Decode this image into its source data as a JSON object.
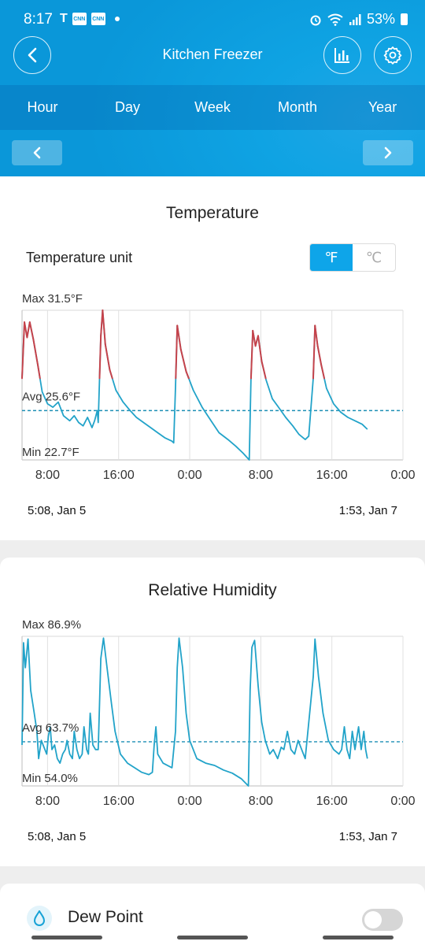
{
  "status_bar": {
    "time": "8:17",
    "battery": "53%",
    "cnn_label": "CNN"
  },
  "header": {
    "title": "Kitchen Freezer"
  },
  "tabs": [
    "Hour",
    "Day",
    "Week",
    "Month",
    "Year"
  ],
  "temperature": {
    "title": "Temperature",
    "unit_label": "Temperature unit",
    "unit_f": "℉",
    "unit_c": "℃",
    "start_label": "5:08,  Jan 5",
    "end_label": "1:53,  Jan 7",
    "chart_data": {
      "type": "line",
      "max_label": "Max 31.5°F",
      "avg_label": "Avg 25.6°F",
      "min_label": "Min 22.7°F",
      "ylim": [
        22.7,
        31.5
      ],
      "avg": 25.6,
      "threshold": 27.5,
      "x_ticks": [
        "8:00",
        "16:00",
        "0:00",
        "8:00",
        "16:00",
        "0:00"
      ],
      "x_range_hours": [
        5.13,
        48
      ],
      "series": [
        {
          "values": [
            [
              5.13,
              27.5
            ],
            [
              5.4,
              30.8
            ],
            [
              5.7,
              29.9
            ],
            [
              6.0,
              30.8
            ],
            [
              6.4,
              29.8
            ],
            [
              6.9,
              28.3
            ],
            [
              7.4,
              26.7
            ],
            [
              8,
              26.0
            ],
            [
              8.6,
              25.8
            ],
            [
              9.2,
              26.1
            ],
            [
              9.8,
              25.3
            ],
            [
              10.5,
              25.0
            ],
            [
              11.0,
              25.3
            ],
            [
              11.5,
              24.9
            ],
            [
              12.0,
              24.7
            ],
            [
              12.5,
              25.2
            ],
            [
              13.0,
              24.6
            ],
            [
              13.3,
              25.0
            ],
            [
              13.6,
              25.6
            ],
            [
              13.7,
              24.9
            ],
            [
              14.0,
              30.0
            ],
            [
              14.2,
              31.5
            ],
            [
              14.5,
              29.5
            ],
            [
              15,
              28.0
            ],
            [
              15.7,
              26.8
            ],
            [
              16.5,
              26.1
            ],
            [
              17.3,
              25.6
            ],
            [
              18,
              25.2
            ],
            [
              18.8,
              24.9
            ],
            [
              19.6,
              24.6
            ],
            [
              20.4,
              24.3
            ],
            [
              21.2,
              24.0
            ],
            [
              22.0,
              23.8
            ],
            [
              22.2,
              23.7
            ],
            [
              22.4,
              27.0
            ],
            [
              22.6,
              30.6
            ],
            [
              23.0,
              29.2
            ],
            [
              23.6,
              27.9
            ],
            [
              24.4,
              26.8
            ],
            [
              25.4,
              25.8
            ],
            [
              26.4,
              25.0
            ],
            [
              27.3,
              24.3
            ],
            [
              28.3,
              23.9
            ],
            [
              29.2,
              23.5
            ],
            [
              30.0,
              23.1
            ],
            [
              30.7,
              22.7
            ],
            [
              30.9,
              27.5
            ],
            [
              31.1,
              30.3
            ],
            [
              31.4,
              29.4
            ],
            [
              31.7,
              30.0
            ],
            [
              32.1,
              28.5
            ],
            [
              32.6,
              27.4
            ],
            [
              33.3,
              26.3
            ],
            [
              34.0,
              25.8
            ],
            [
              34.8,
              25.2
            ],
            [
              35.6,
              24.7
            ],
            [
              36.3,
              24.2
            ],
            [
              37.0,
              23.9
            ],
            [
              37.4,
              24.1
            ],
            [
              37.9,
              27.5
            ],
            [
              38.1,
              30.6
            ],
            [
              38.4,
              29.4
            ],
            [
              38.8,
              28.3
            ],
            [
              39.4,
              26.9
            ],
            [
              40.2,
              26.0
            ],
            [
              41,
              25.5
            ],
            [
              41.8,
              25.2
            ],
            [
              42.6,
              25.0
            ],
            [
              43.4,
              24.8
            ],
            [
              44.0,
              24.5
            ]
          ]
        }
      ]
    }
  },
  "humidity": {
    "title": "Relative Humidity",
    "start_label": "5:08,  Jan 5",
    "end_label": "1:53,  Jan 7",
    "chart_data": {
      "type": "line",
      "max_label": "Max 86.9%",
      "avg_label": "Avg 63.7%",
      "min_label": "Min 54.0%",
      "ylim": [
        54.0,
        86.9
      ],
      "avg": 63.7,
      "x_ticks": [
        "8:00",
        "16:00",
        "0:00",
        "8:00",
        "16:00",
        "0:00"
      ],
      "x_range_hours": [
        5.13,
        48
      ],
      "series": [
        {
          "values": [
            [
              5.13,
              63
            ],
            [
              5.3,
              85.5
            ],
            [
              5.5,
              80
            ],
            [
              5.8,
              86.3
            ],
            [
              6.1,
              75
            ],
            [
              6.5,
              70
            ],
            [
              6.8,
              66
            ],
            [
              7.0,
              60
            ],
            [
              7.3,
              64
            ],
            [
              7.6,
              62.5
            ],
            [
              7.9,
              61
            ],
            [
              8.1,
              65
            ],
            [
              8.3,
              67
            ],
            [
              8.5,
              62
            ],
            [
              8.8,
              63
            ],
            [
              9.1,
              60
            ],
            [
              9.4,
              59
            ],
            [
              9.7,
              61
            ],
            [
              10.0,
              62
            ],
            [
              10.2,
              64
            ],
            [
              10.5,
              61
            ],
            [
              10.8,
              60
            ],
            [
              11.0,
              66
            ],
            [
              11.3,
              62
            ],
            [
              11.6,
              60
            ],
            [
              11.9,
              61
            ],
            [
              12.1,
              67
            ],
            [
              12.4,
              62
            ],
            [
              12.6,
              61
            ],
            [
              12.8,
              70
            ],
            [
              13.1,
              63
            ],
            [
              13.4,
              62
            ],
            [
              13.7,
              62
            ],
            [
              14.0,
              82
            ],
            [
              14.3,
              86.5
            ],
            [
              14.7,
              80
            ],
            [
              15.2,
              72
            ],
            [
              15.6,
              66
            ],
            [
              16.2,
              61
            ],
            [
              17.0,
              59
            ],
            [
              17.8,
              58
            ],
            [
              18.6,
              57
            ],
            [
              19.4,
              56.5
            ],
            [
              19.8,
              57.0
            ],
            [
              20.0,
              63
            ],
            [
              20.2,
              67
            ],
            [
              20.4,
              61
            ],
            [
              21.0,
              59
            ],
            [
              22.0,
              58
            ],
            [
              22.4,
              66
            ],
            [
              22.6,
              80
            ],
            [
              22.8,
              86.5
            ],
            [
              23.2,
              80
            ],
            [
              23.6,
              70
            ],
            [
              24.0,
              64
            ],
            [
              24.8,
              60
            ],
            [
              25.8,
              59
            ],
            [
              26.8,
              58.5
            ],
            [
              27.8,
              57.5
            ],
            [
              28.8,
              56.8
            ],
            [
              29.8,
              55.6
            ],
            [
              30.6,
              54.0
            ],
            [
              30.8,
              75
            ],
            [
              31.0,
              84.5
            ],
            [
              31.3,
              86.0
            ],
            [
              31.7,
              76
            ],
            [
              32.1,
              68
            ],
            [
              32.5,
              64
            ],
            [
              33.0,
              61
            ],
            [
              33.4,
              62
            ],
            [
              33.9,
              60
            ],
            [
              34.3,
              62.5
            ],
            [
              34.6,
              62
            ],
            [
              35.0,
              66
            ],
            [
              35.4,
              62
            ],
            [
              35.8,
              61
            ],
            [
              36.2,
              64
            ],
            [
              36.6,
              62
            ],
            [
              37.0,
              60
            ],
            [
              37.9,
              78
            ],
            [
              38.1,
              86.3
            ],
            [
              38.5,
              78
            ],
            [
              39.0,
              70
            ],
            [
              39.6,
              64
            ],
            [
              40.2,
              62
            ],
            [
              40.8,
              61
            ],
            [
              41.1,
              62
            ],
            [
              41.4,
              67
            ],
            [
              41.7,
              62
            ],
            [
              42.0,
              60
            ],
            [
              42.3,
              66
            ],
            [
              42.6,
              62
            ],
            [
              43.0,
              67
            ],
            [
              43.3,
              62
            ],
            [
              43.6,
              66
            ],
            [
              43.8,
              62
            ],
            [
              44.0,
              60
            ]
          ]
        }
      ]
    }
  },
  "dew_point": {
    "label": "Dew Point"
  },
  "colors": {
    "primary": "#0ea5e9",
    "line": "#22a3c9",
    "high": "#c6434b",
    "avg_line": "#1d8fb5"
  },
  "icons": {
    "back": "chevron-left-icon",
    "stats": "bar-chart-icon",
    "settings": "gear-icon",
    "prev": "chevron-left-icon",
    "next": "chevron-right-icon",
    "dew": "droplet-icon"
  }
}
